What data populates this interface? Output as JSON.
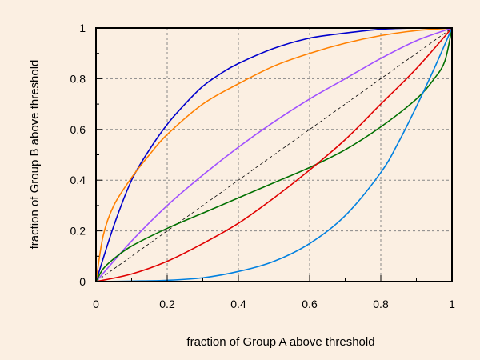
{
  "chart_data": {
    "type": "line",
    "title": "",
    "xlabel": "fraction of Group A above threshold",
    "ylabel": "fraction of Group B above threshold",
    "xlim": [
      0,
      1
    ],
    "ylim": [
      0,
      1
    ],
    "xticks": [
      0,
      0.2,
      0.4,
      0.6,
      0.8,
      1
    ],
    "yticks": [
      0,
      0.2,
      0.4,
      0.6,
      0.8,
      1
    ],
    "xtick_labels": [
      "0",
      "0.2",
      "0.4",
      "0.6",
      "0.8",
      "1"
    ],
    "ytick_labels": [
      "0",
      "0.2",
      "0.4",
      "0.6",
      "0.8",
      "1"
    ],
    "grid": true,
    "legend": "none",
    "background_color": "#fbefe2",
    "plot_background_color": "#fbefe2",
    "series": [
      {
        "color": "#000000",
        "style": "dashed",
        "x": [
          0,
          1
        ],
        "y": [
          0,
          1
        ]
      },
      {
        "color": "#0000cc",
        "x": [
          0,
          0.05,
          0.1,
          0.15,
          0.2,
          0.25,
          0.3,
          0.35,
          0.4,
          0.5,
          0.6,
          0.7,
          0.8,
          0.9,
          1
        ],
        "y": [
          0,
          0.22,
          0.4,
          0.52,
          0.62,
          0.7,
          0.77,
          0.82,
          0.86,
          0.92,
          0.96,
          0.98,
          0.995,
          1,
          1
        ]
      },
      {
        "color": "#ff8000",
        "x": [
          0,
          0.02,
          0.05,
          0.1,
          0.15,
          0.2,
          0.3,
          0.4,
          0.5,
          0.6,
          0.7,
          0.8,
          0.9,
          1
        ],
        "y": [
          0,
          0.18,
          0.3,
          0.41,
          0.5,
          0.58,
          0.7,
          0.78,
          0.85,
          0.9,
          0.94,
          0.97,
          0.99,
          1
        ]
      },
      {
        "color": "#a050ff",
        "x": [
          0,
          0.1,
          0.2,
          0.3,
          0.4,
          0.5,
          0.6,
          0.7,
          0.8,
          0.9,
          1
        ],
        "y": [
          0,
          0.16,
          0.3,
          0.42,
          0.53,
          0.63,
          0.72,
          0.8,
          0.88,
          0.95,
          1
        ]
      },
      {
        "color": "#007000",
        "x": [
          0,
          0.02,
          0.05,
          0.1,
          0.2,
          0.3,
          0.4,
          0.5,
          0.6,
          0.7,
          0.8,
          0.9,
          0.95,
          0.98,
          1
        ],
        "y": [
          0,
          0.05,
          0.09,
          0.14,
          0.21,
          0.27,
          0.33,
          0.39,
          0.45,
          0.52,
          0.61,
          0.72,
          0.8,
          0.87,
          1
        ]
      },
      {
        "color": "#e00000",
        "x": [
          0,
          0.1,
          0.2,
          0.3,
          0.4,
          0.5,
          0.6,
          0.7,
          0.8,
          0.9,
          1
        ],
        "y": [
          0,
          0.03,
          0.08,
          0.15,
          0.23,
          0.33,
          0.44,
          0.56,
          0.7,
          0.84,
          1
        ]
      },
      {
        "color": "#0080e0",
        "x": [
          0,
          0.1,
          0.2,
          0.3,
          0.4,
          0.5,
          0.6,
          0.7,
          0.8,
          0.85,
          0.9,
          0.95,
          1
        ],
        "y": [
          0,
          0.002,
          0.005,
          0.015,
          0.04,
          0.08,
          0.15,
          0.26,
          0.43,
          0.55,
          0.69,
          0.84,
          1
        ]
      }
    ]
  }
}
